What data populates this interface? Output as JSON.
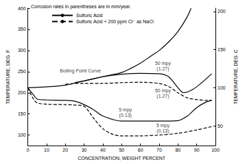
{
  "chart_data": {
    "type": "line",
    "subtitle": "Corrosion rates in parentheses are in mm/year.",
    "x_label": "CONCENTRATION, WEIGHT PERCENT",
    "y_label": "TEMPERATURE, DEG. F",
    "y2_label": "TEMPERATURE, DEG. C",
    "xlim": [
      0,
      100
    ],
    "xticks": [
      0,
      10,
      20,
      30,
      40,
      50,
      60,
      70,
      80,
      90,
      100
    ],
    "ylim": [
      75,
      400
    ],
    "yticks": [
      100,
      150,
      200,
      250,
      300,
      350,
      400
    ],
    "y2lim": [
      23.9,
      204.4
    ],
    "y2ticks": [
      50,
      100,
      150,
      200
    ],
    "grid": false,
    "legend": "upper left",
    "series": [
      {
        "name": "Sulfuric Acid",
        "color": "#000000",
        "line_style": "solid",
        "x": [
          0,
          10,
          20,
          30,
          40,
          50,
          55,
          60,
          65,
          70,
          75,
          80,
          85,
          87
        ],
        "values": [
          212,
          214,
          218,
          228,
          238,
          248,
          258,
          270,
          285,
          300,
          320,
          345,
          380,
          400
        ]
      },
      {
        "name": "Sulfuric Acid",
        "color": "#000000",
        "line_style": "solid",
        "x": [
          25,
          30,
          40,
          50,
          60,
          70,
          75,
          80,
          83,
          88,
          93,
          98
        ],
        "values": [
          224,
          228,
          238,
          244,
          246,
          245,
          238,
          212,
          200,
          208,
          225,
          245
        ]
      },
      {
        "name": "Sulfuric Acid",
        "color": "#000000",
        "line_style": "solid",
        "x": [
          0,
          3,
          5,
          10,
          20,
          25,
          30,
          35,
          40,
          50,
          60,
          70,
          80,
          85,
          90,
          95,
          98
        ],
        "values": [
          212,
          195,
          185,
          183,
          182,
          180,
          172,
          160,
          145,
          133,
          133,
          133,
          134,
          145,
          165,
          178,
          182
        ]
      },
      {
        "name": "Sulfuric Acid + 200 ppm Cl⁻ as NaCl",
        "color": "#000000",
        "line_style": "dashed",
        "x": [
          20,
          25,
          30,
          40,
          50,
          60,
          70,
          75,
          80,
          85,
          90,
          95,
          98
        ],
        "values": [
          220,
          222,
          222,
          222,
          224,
          225,
          222,
          215,
          200,
          188,
          184,
          182,
          182
        ]
      },
      {
        "name": "Sulfuric Acid + 200 ppm Cl⁻ as NaCl",
        "color": "#000000",
        "line_style": "dashed",
        "x": [
          0,
          3,
          5,
          10,
          20,
          25,
          30,
          35,
          40,
          45,
          50,
          60,
          70,
          80,
          90,
          98
        ],
        "values": [
          212,
          185,
          176,
          173,
          172,
          171,
          168,
          140,
          115,
          102,
          98,
          98,
          100,
          104,
          112,
          120
        ]
      }
    ],
    "annotations": [
      {
        "text": "Boiling Point Curve",
        "x": 28,
        "y": 252
      },
      {
        "text": "50 mpy\n(1.27)",
        "x": 72,
        "y": 264
      },
      {
        "text": "50 mpy\n(1.27)",
        "x": 72,
        "y": 198
      },
      {
        "text": "5 mpy\n(0.13)",
        "x": 52,
        "y": 153
      },
      {
        "text": "5 mpy\n(0.13)",
        "x": 72,
        "y": 117
      }
    ]
  }
}
